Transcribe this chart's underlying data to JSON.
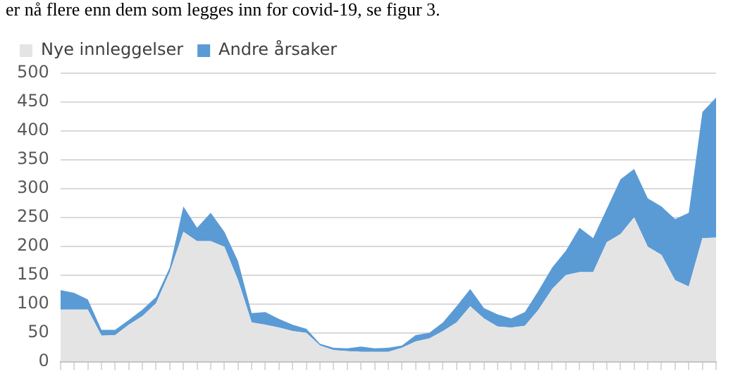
{
  "chart_data": {
    "type": "area",
    "stacked": true,
    "annotations": [
      "er nå flere enn dem som legges inn for covid-19, se figur 3."
    ],
    "categories": [
      null,
      null,
      null,
      null,
      null,
      null,
      null,
      null,
      null,
      null,
      null,
      null,
      null,
      null,
      null,
      null,
      null,
      null,
      null,
      null,
      null,
      null,
      null,
      null,
      null,
      null,
      null,
      null,
      null,
      null,
      null,
      null,
      null,
      null,
      null,
      null,
      null,
      null,
      null,
      null,
      null,
      null,
      null,
      null,
      null,
      null,
      null,
      null,
      null
    ],
    "series": [
      {
        "name": "Nye innleggelser",
        "color": "#e4e4e4",
        "values": [
          90,
          90,
          90,
          45,
          46,
          64,
          79,
          101,
          155,
          225,
          209,
          209,
          199,
          141,
          68,
          64,
          59,
          53,
          50,
          28,
          20,
          18,
          17,
          17,
          17,
          24,
          35,
          40,
          53,
          68,
          96,
          75,
          61,
          59,
          62,
          90,
          126,
          150,
          155,
          155,
          207,
          221,
          250,
          199,
          185,
          141,
          130,
          214,
          215
        ]
      },
      {
        "name": "Andre årsaker",
        "color": "#5b9bd5",
        "values": [
          34,
          29,
          18,
          10,
          9,
          8,
          11,
          11,
          8,
          44,
          23,
          49,
          26,
          33,
          16,
          22,
          15,
          11,
          7,
          3,
          4,
          5,
          9,
          6,
          7,
          4,
          11,
          10,
          15,
          28,
          30,
          18,
          21,
          16,
          24,
          33,
          37,
          42,
          77,
          59,
          58,
          95,
          84,
          84,
          84,
          106,
          128,
          219,
          243
        ]
      }
    ],
    "ylim": [
      0,
      500
    ],
    "yticks": [
      0,
      50,
      100,
      150,
      200,
      250,
      300,
      350,
      400,
      450,
      500
    ],
    "grid": "y",
    "legend": "top left",
    "tick_labels": "y"
  }
}
